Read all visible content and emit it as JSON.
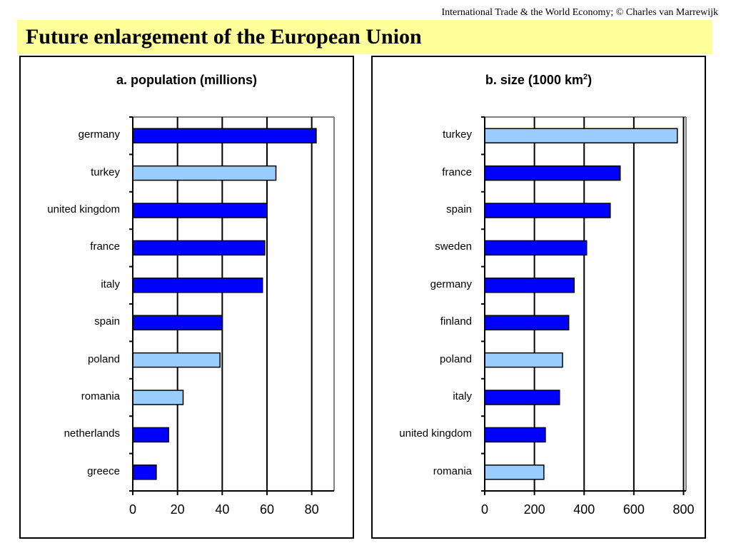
{
  "header": {
    "credit": "International Trade & the World Economy;  © Charles van Marrewijk",
    "title": "Future enlargement of the European Union"
  },
  "colors": {
    "member": "#0000ff",
    "candidate": "#99ccff",
    "background": "#ffffff",
    "title_band": "#ffff99"
  },
  "chart_data": [
    {
      "type": "bar",
      "orientation": "horizontal",
      "title": "a. population (millions)",
      "categories": [
        "germany",
        "turkey",
        "united kingdom",
        "france",
        "italy",
        "spain",
        "poland",
        "romania",
        "netherlands",
        "greece"
      ],
      "values": [
        82,
        64,
        60,
        59,
        58,
        40,
        39,
        22.5,
        16,
        10.5
      ],
      "candidate": [
        false,
        true,
        false,
        false,
        false,
        false,
        true,
        true,
        false,
        false
      ],
      "xlim": [
        0,
        90
      ],
      "xticks": [
        0,
        20,
        40,
        60,
        80
      ],
      "grid": true
    },
    {
      "type": "bar",
      "orientation": "horizontal",
      "title": "b. size (1000 km",
      "title_sup": "2",
      "title_end": ")",
      "categories": [
        "turkey",
        "france",
        "spain",
        "sweden",
        "germany",
        "finland",
        "poland",
        "italy",
        "united kingdom",
        "romania"
      ],
      "values": [
        775,
        545,
        505,
        410,
        360,
        338,
        313,
        301,
        244,
        238
      ],
      "candidate": [
        true,
        false,
        false,
        false,
        false,
        false,
        true,
        false,
        false,
        true
      ],
      "xlim": [
        0,
        810
      ],
      "xticks": [
        0,
        200,
        400,
        600,
        800
      ],
      "grid": true
    }
  ]
}
